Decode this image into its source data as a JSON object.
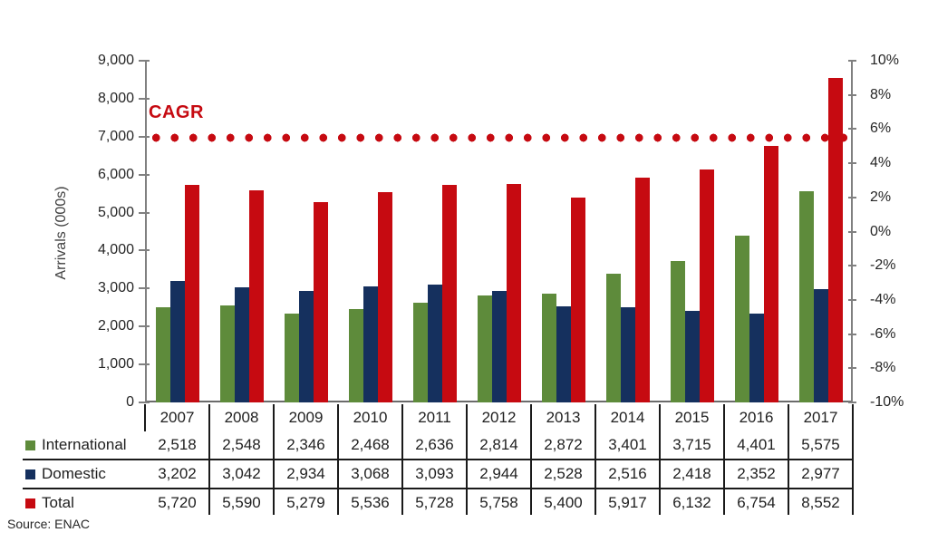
{
  "chart_data": {
    "type": "bar",
    "title": "",
    "categories": [
      "2007",
      "2008",
      "2009",
      "2010",
      "2011",
      "2012",
      "2013",
      "2014",
      "2015",
      "2016",
      "2017"
    ],
    "series": [
      {
        "name": "International",
        "color": "#5E8B3B",
        "values": [
          2518,
          2548,
          2346,
          2468,
          2636,
          2814,
          2872,
          3401,
          3715,
          4401,
          5575
        ]
      },
      {
        "name": "Domestic",
        "color": "#15305E",
        "values": [
          3202,
          3042,
          2934,
          3068,
          3093,
          2944,
          2528,
          2516,
          2418,
          2352,
          2977
        ]
      },
      {
        "name": "Total",
        "color": "#C60A11",
        "values": [
          5720,
          5590,
          5279,
          5536,
          5728,
          5758,
          5400,
          5917,
          6132,
          6754,
          8552
        ]
      }
    ],
    "left_axis": {
      "label": "Arrivals (000s)",
      "min": 0,
      "max": 9000,
      "step": 1000,
      "tick_labels_top_to_bottom": [
        "9,000",
        "8,000",
        "7,000",
        "6,000",
        "5,000",
        "4,000",
        "3,000",
        "2,000",
        "1,000",
        "0"
      ]
    },
    "right_axis": {
      "min": -10,
      "max": 10,
      "step": 2,
      "unit": "%",
      "tick_labels_top_to_bottom": [
        "10%",
        "8%",
        "6%",
        "4%",
        "2%",
        "0%",
        "-2%",
        "-4%",
        "-6%",
        "-8%",
        "-10%"
      ]
    },
    "reference_line": {
      "label": "CAGR",
      "value_pct": 5.5,
      "style": "dotted",
      "color": "#C60A11"
    },
    "grid": false,
    "legend_position": "table-rows-left"
  },
  "source_note": "Source: ENAC"
}
